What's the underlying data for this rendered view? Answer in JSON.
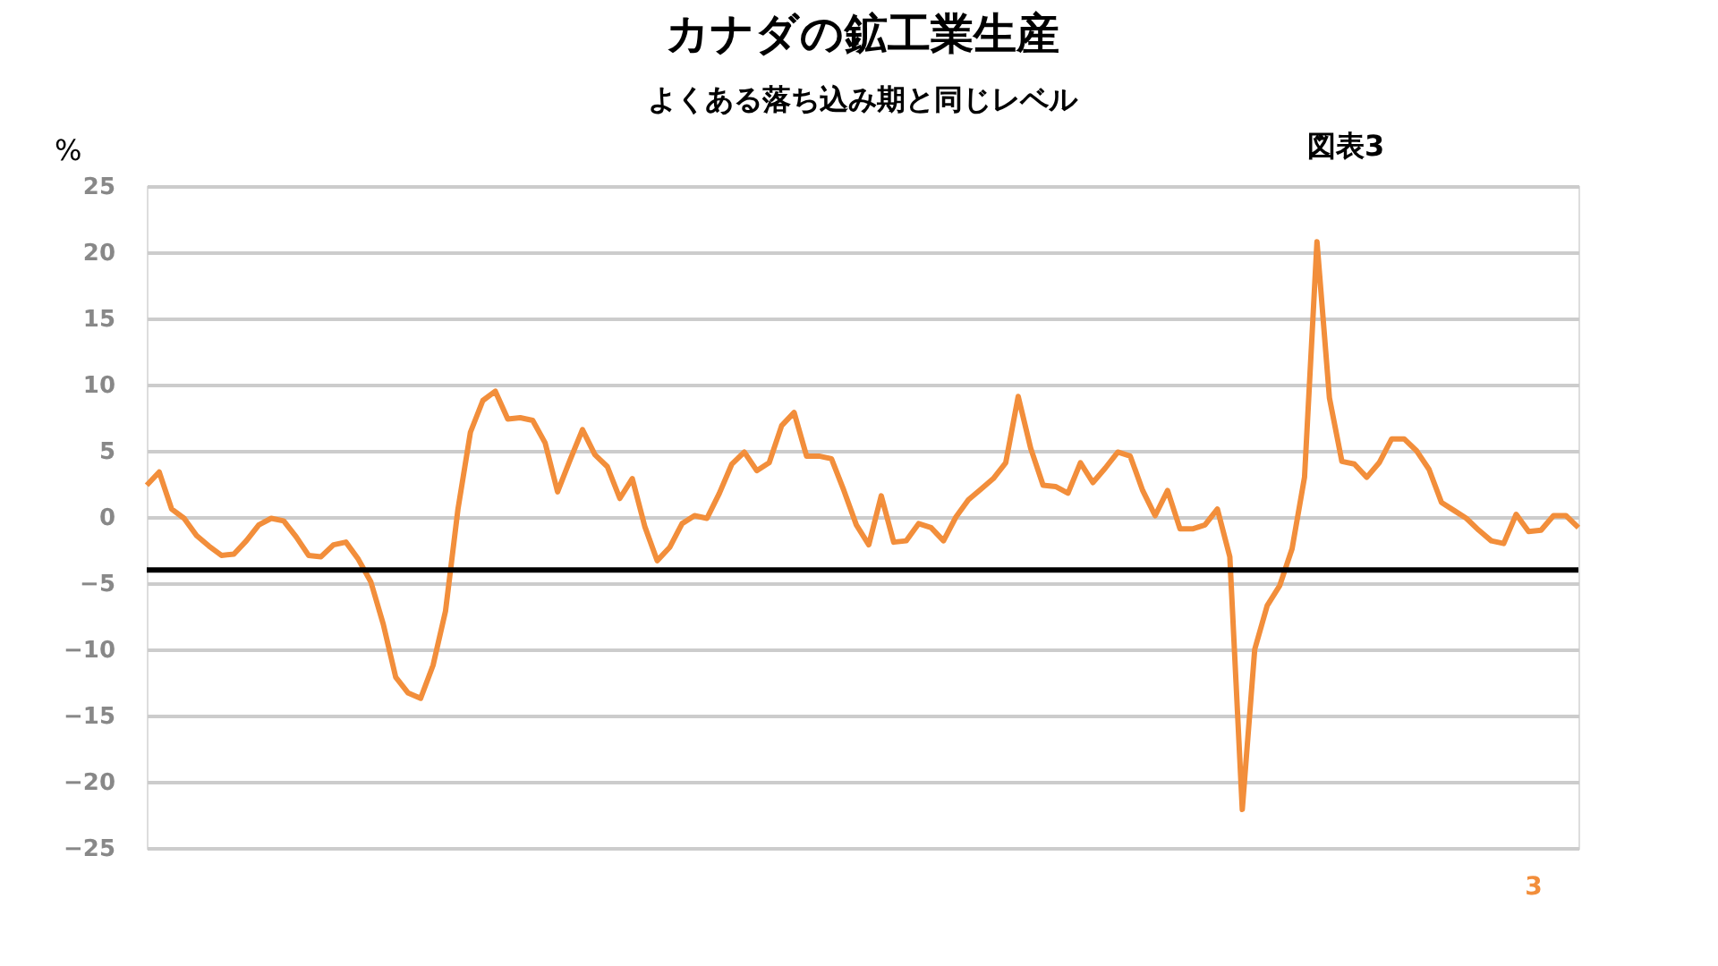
{
  "chart_data": {
    "type": "line",
    "title": "カナダの鉱工業生産",
    "subtitle": "よくある落ち込み期と同じレベル",
    "ylabel": "%",
    "annotations": [
      "図表3",
      "3"
    ],
    "categories": [
      null,
      null,
      null,
      null,
      null,
      null,
      null,
      null,
      null,
      null,
      null,
      null,
      null,
      null,
      null,
      null,
      null,
      null,
      null,
      null,
      null,
      null,
      null,
      null,
      null,
      null,
      null,
      null,
      null,
      null,
      null,
      null,
      null,
      null,
      null,
      null,
      null,
      null,
      null,
      null,
      null,
      null,
      null,
      null,
      null,
      null,
      null,
      null,
      null,
      null,
      null,
      null,
      null,
      null,
      null,
      null,
      null,
      null,
      null,
      null,
      null,
      null,
      null,
      null,
      null,
      null,
      null,
      null,
      null,
      null,
      null,
      null,
      null,
      null,
      null,
      null,
      null,
      null,
      null,
      null,
      null,
      null,
      null,
      null,
      null,
      null,
      null,
      null,
      null,
      null,
      null,
      null,
      null,
      null,
      null,
      null,
      null,
      null,
      null,
      null,
      null,
      null,
      null,
      null,
      null,
      null,
      null,
      null,
      null,
      null,
      null,
      null,
      null,
      null,
      null,
      null
    ],
    "series": [
      {
        "color": "#f28e3b",
        "values": [
          2.4,
          3.4,
          0.6,
          -0.1,
          -1.4,
          -2.2,
          -2.9,
          -2.8,
          -1.8,
          -0.6,
          -0.1,
          -0.3,
          -1.5,
          -2.9,
          -3.0,
          -2.1,
          -1.9,
          -3.2,
          -4.9,
          -8.1,
          -12.1,
          -13.3,
          -13.7,
          -11.2,
          -7.1,
          0.6,
          6.4,
          8.8,
          9.5,
          7.4,
          7.5,
          7.3,
          5.6,
          1.9,
          4.3,
          6.6,
          4.7,
          3.8,
          1.4,
          2.9,
          -0.7,
          -3.3,
          -2.3,
          -0.5,
          0.1,
          -0.1,
          1.8,
          4.0,
          4.9,
          3.5,
          4.1,
          6.9,
          7.9,
          4.6,
          4.6,
          4.4,
          2.0,
          -0.6,
          -2.1,
          1.6,
          -1.9,
          -1.8,
          -0.5,
          -0.8,
          -1.8,
          0.0,
          1.3,
          2.1,
          2.9,
          4.1,
          9.1,
          5.2,
          2.4,
          2.3,
          1.8,
          4.1,
          2.6,
          3.7,
          4.9,
          4.6,
          2.0,
          0.1,
          2.0,
          -0.9,
          -0.9,
          -0.6,
          0.6,
          -3.0,
          -22.1,
          -10.0,
          -6.7,
          -5.2,
          -2.4,
          3.0,
          20.8,
          9.0,
          4.2,
          4.0,
          3.0,
          4.1,
          5.9,
          5.9,
          5.0,
          3.6,
          1.1,
          0.5,
          -0.1,
          -1.0,
          -1.8,
          -2.0,
          0.2,
          -1.1,
          -1.0,
          0.1,
          0.1,
          -0.8
        ]
      }
    ],
    "ylim": [
      -25,
      25
    ],
    "yticks": [
      -25,
      -20,
      -15,
      -10,
      -5,
      0,
      5,
      10,
      15,
      20,
      25
    ],
    "ref_lines": [
      {
        "axis": "y",
        "value": -4,
        "color": "#000000"
      }
    ],
    "grid": "y",
    "tick_labels": "y",
    "marker": "none",
    "line_style": "solid"
  }
}
